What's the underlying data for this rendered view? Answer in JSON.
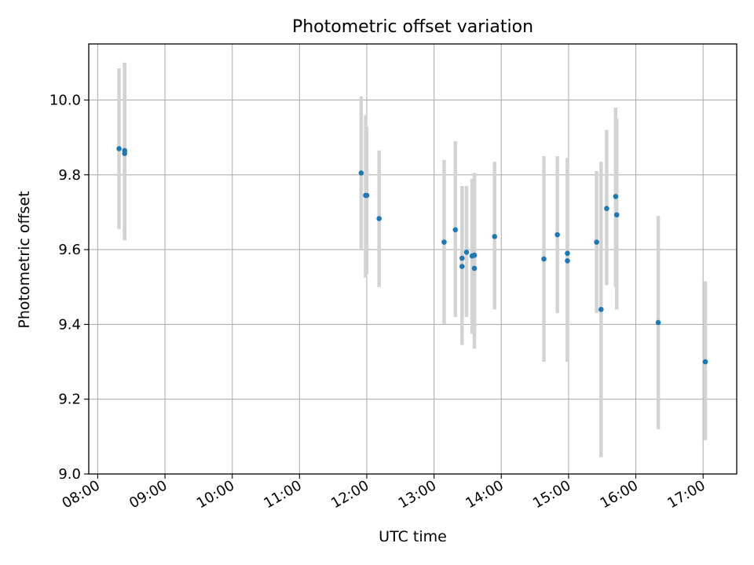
{
  "chart_data": {
    "type": "scatter",
    "title": "Photometric offset variation",
    "xlabel": "UTC time",
    "ylabel": "Photometric offset",
    "x_ticks": [
      "08:00",
      "09:00",
      "10:00",
      "11:00",
      "12:00",
      "13:00",
      "14:00",
      "15:00",
      "16:00",
      "17:00"
    ],
    "y_ticks": [
      "9.0",
      "9.2",
      "9.4",
      "9.6",
      "9.8",
      "10.0"
    ],
    "xlim": [
      "07:52",
      "17:30"
    ],
    "ylim": [
      9.0,
      10.15
    ],
    "grid": true,
    "colors": {
      "point": "#1f77b4",
      "errorbar": "#d3d3d3",
      "grid": "#b0b0b0"
    },
    "points": [
      {
        "x": "08:19",
        "y": 9.87,
        "y_low": 9.655,
        "y_high": 10.085
      },
      {
        "x": "08:24",
        "y": 9.865,
        "y_low": 9.625,
        "y_high": 10.1
      },
      {
        "x": "08:24",
        "y": 9.857,
        "y_low": 9.625,
        "y_high": 10.1
      },
      {
        "x": "11:55",
        "y": 9.805,
        "y_low": 9.6,
        "y_high": 10.01
      },
      {
        "x": "11:59",
        "y": 9.745,
        "y_low": 9.525,
        "y_high": 9.96
      },
      {
        "x": "12:00",
        "y": 9.745,
        "y_low": 9.535,
        "y_high": 9.93
      },
      {
        "x": "12:11",
        "y": 9.683,
        "y_low": 9.5,
        "y_high": 9.865
      },
      {
        "x": "13:09",
        "y": 9.62,
        "y_low": 9.4,
        "y_high": 9.84
      },
      {
        "x": "13:19",
        "y": 9.653,
        "y_low": 9.42,
        "y_high": 9.89
      },
      {
        "x": "13:25",
        "y": 9.555,
        "y_low": 9.345,
        "y_high": 9.77
      },
      {
        "x": "13:25",
        "y": 9.577,
        "y_low": 9.39,
        "y_high": 9.77
      },
      {
        "x": "13:29",
        "y": 9.593,
        "y_low": 9.42,
        "y_high": 9.77
      },
      {
        "x": "13:34",
        "y": 9.583,
        "y_low": 9.375,
        "y_high": 9.79
      },
      {
        "x": "13:36",
        "y": 9.55,
        "y_low": 9.335,
        "y_high": 9.805
      },
      {
        "x": "13:36",
        "y": 9.585,
        "y_low": 9.365,
        "y_high": 9.805
      },
      {
        "x": "13:54",
        "y": 9.635,
        "y_low": 9.44,
        "y_high": 9.835
      },
      {
        "x": "14:38",
        "y": 9.575,
        "y_low": 9.3,
        "y_high": 9.85
      },
      {
        "x": "14:50",
        "y": 9.64,
        "y_low": 9.43,
        "y_high": 9.85
      },
      {
        "x": "14:59",
        "y": 9.59,
        "y_low": 9.3,
        "y_high": 9.845
      },
      {
        "x": "14:59",
        "y": 9.57,
        "y_low": 9.3,
        "y_high": 9.845
      },
      {
        "x": "15:25",
        "y": 9.62,
        "y_low": 9.43,
        "y_high": 9.81
      },
      {
        "x": "15:29",
        "y": 9.44,
        "y_low": 9.045,
        "y_high": 9.835
      },
      {
        "x": "15:34",
        "y": 9.71,
        "y_low": 9.505,
        "y_high": 9.92
      },
      {
        "x": "15:42",
        "y": 9.742,
        "y_low": 9.5,
        "y_high": 9.98
      },
      {
        "x": "15:43",
        "y": 9.693,
        "y_low": 9.44,
        "y_high": 9.95
      },
      {
        "x": "16:20",
        "y": 9.405,
        "y_low": 9.12,
        "y_high": 9.69
      },
      {
        "x": "17:02",
        "y": 9.3,
        "y_low": 9.09,
        "y_high": 9.515
      }
    ]
  }
}
